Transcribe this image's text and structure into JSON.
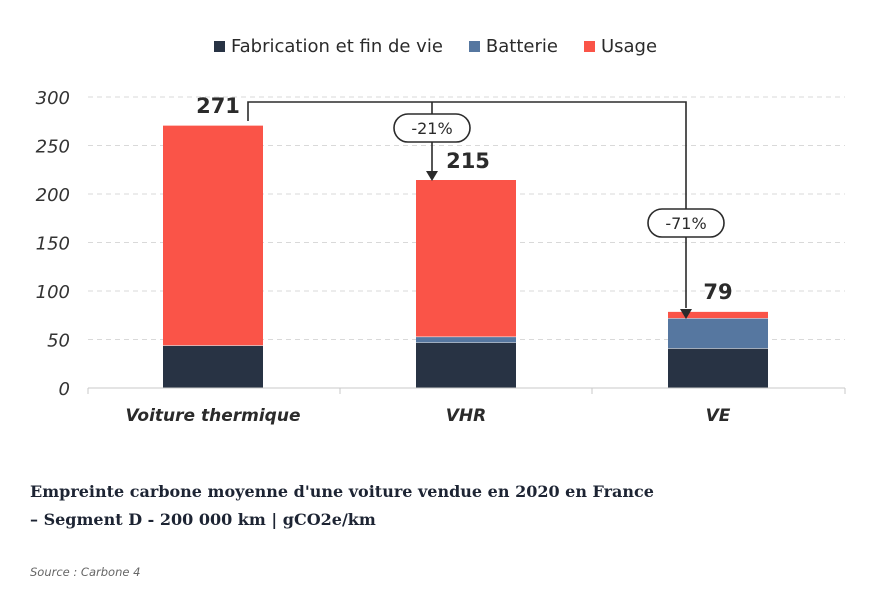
{
  "chart_data": {
    "type": "bar",
    "stacked": true,
    "categories": [
      "Voiture thermique",
      "VHR",
      "VE"
    ],
    "series": [
      {
        "name": "Fabrication et fin de vie",
        "color": "#283344",
        "values": [
          44,
          47,
          41
        ]
      },
      {
        "name": "Batterie",
        "color": "#5677a0",
        "values": [
          0,
          6,
          31
        ]
      },
      {
        "name": "Usage",
        "color": "#fa5448",
        "values": [
          227,
          162,
          7
        ]
      }
    ],
    "totals": [
      "271",
      "215",
      "79"
    ],
    "ylim": [
      0,
      300
    ],
    "yticks": [
      "0",
      "50",
      "100",
      "150",
      "200",
      "250",
      "300"
    ],
    "grid": true,
    "legend_position": "top-center",
    "annotations": [
      {
        "label": "-21%",
        "from": "Voiture thermique",
        "to": "VHR"
      },
      {
        "label": "-71%",
        "from": "Voiture thermique",
        "to": "VE"
      }
    ]
  },
  "caption": {
    "line1": "Empreinte carbone moyenne d'une voiture vendue en 2020 en France",
    "line2": "– Segment D - 200 000 km | gCO2e/km"
  },
  "source": "Source : Carbone 4"
}
